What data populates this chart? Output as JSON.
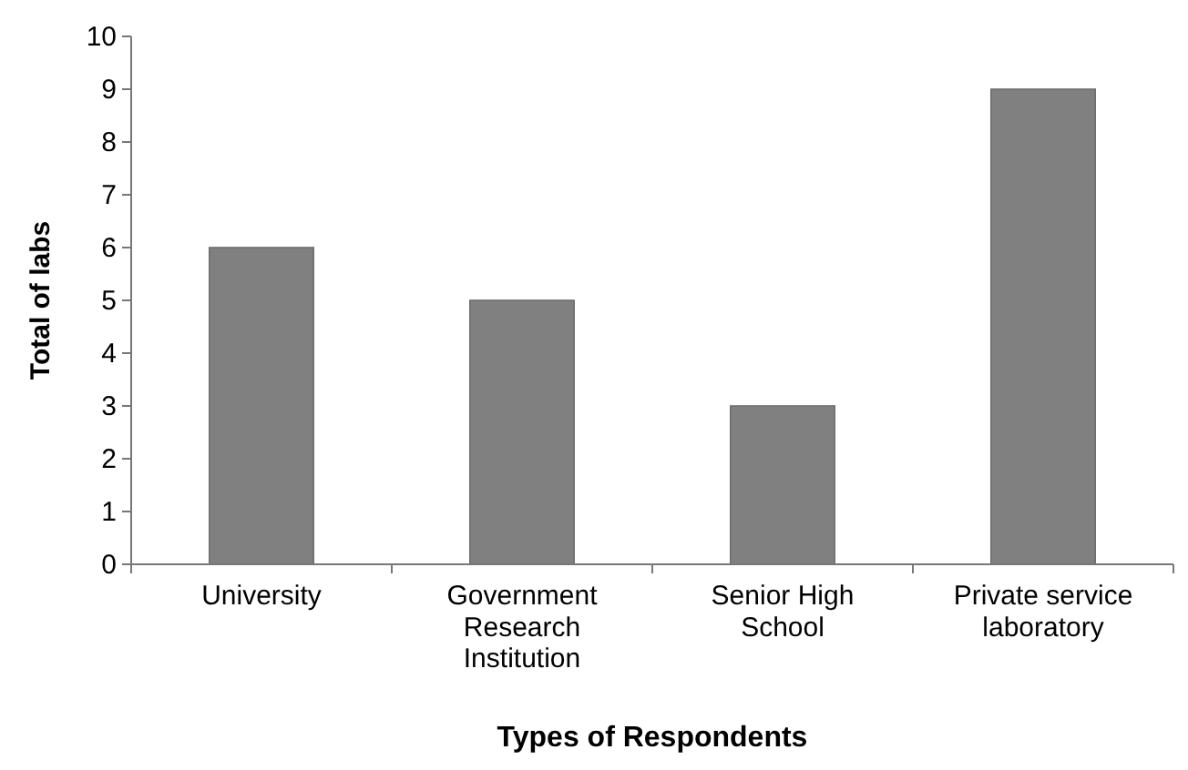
{
  "chart_data": {
    "type": "bar",
    "xlabel": "Types of Respondents",
    "ylabel": "Total of labs",
    "categories": [
      "University",
      "Government Research Institution",
      "Senior High School",
      "Private service laboratory"
    ],
    "values": [
      6,
      5,
      3,
      9
    ],
    "color": "#808080",
    "ylim": [
      0,
      10
    ],
    "yticks": [
      0,
      1,
      2,
      3,
      4,
      5,
      6,
      7,
      8,
      9,
      10
    ],
    "grid": false
  }
}
